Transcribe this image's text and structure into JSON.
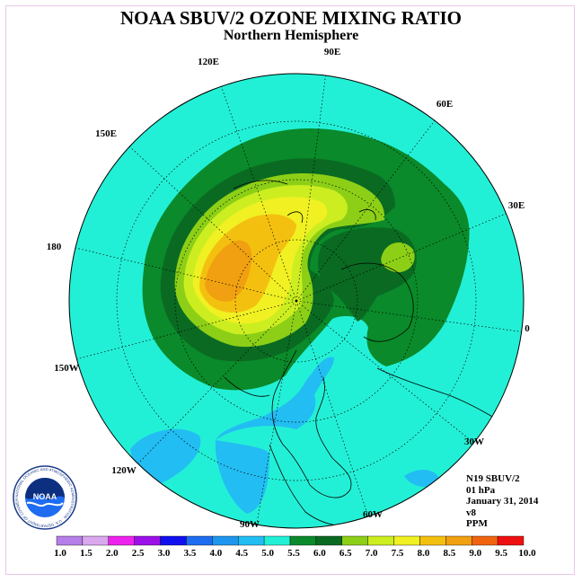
{
  "header": {
    "title": "NOAA SBUV/2 OZONE MIXING RATIO",
    "subtitle": "Northern Hemisphere"
  },
  "map": {
    "longitude_labels": [
      "90E",
      "60E",
      "30E",
      "0",
      "30W",
      "60W",
      "90W",
      "120W",
      "150W",
      "180",
      "150E",
      "120E"
    ]
  },
  "info": {
    "lines": [
      "N19 SBUV/2",
      "01 hPa",
      "January 31, 2014",
      "v8",
      "PPM"
    ]
  },
  "colorbar": {
    "labels": [
      "1.0",
      "1.5",
      "2.0",
      "2.5",
      "3.0",
      "3.5",
      "4.0",
      "4.5",
      "5.0",
      "5.5",
      "6.0",
      "6.5",
      "7.0",
      "7.5",
      "8.0",
      "8.5",
      "9.0",
      "9.5",
      "10.0"
    ],
    "colors": [
      "#b67ee8",
      "#d9a8ee",
      "#ee22ee",
      "#9b10e8",
      "#1010ee",
      "#1e6cf0",
      "#1e96ee",
      "#22bdf2",
      "#22f0d6",
      "#0a8a2a",
      "#0a6a22",
      "#8ccf16",
      "#ccee20",
      "#f0f022",
      "#f4c010",
      "#f0a010",
      "#f06410",
      "#ee1010",
      "#7a4a22"
    ]
  },
  "logo": {
    "text": "NOAA",
    "ring_text": "NATIONAL OCEANIC AND ATMOSPHERIC ADMINISTRATION · U.S. DEPARTMENT OF COMMERCE"
  }
}
